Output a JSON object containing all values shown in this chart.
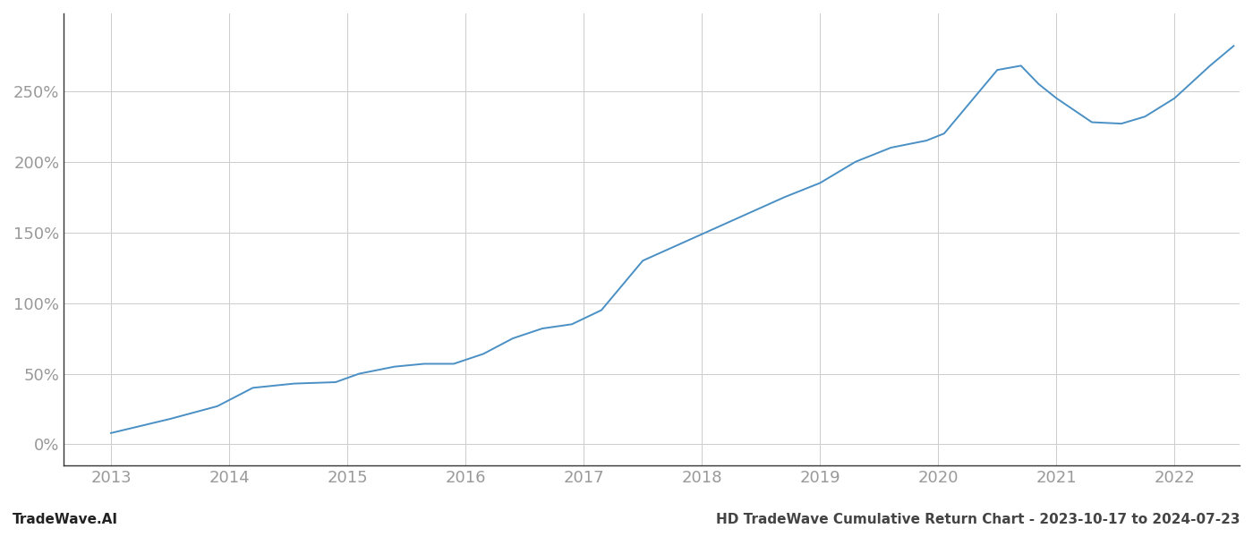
{
  "title": "HD TradeWave Cumulative Return Chart - 2023-10-17 to 2024-07-23",
  "watermark": "TradeWave.AI",
  "x_years": [
    2013,
    2014,
    2015,
    2016,
    2017,
    2018,
    2019,
    2020,
    2021,
    2022
  ],
  "line_color": "#4a90c4",
  "line_width": 1.4,
  "background_color": "#ffffff",
  "grid_color": "#cccccc",
  "yticks": [
    0,
    50,
    100,
    150,
    200,
    250
  ],
  "ylim": [
    -15,
    305
  ],
  "xlim": [
    2012.6,
    2022.55
  ],
  "xy_data": [
    [
      2013.0,
      8
    ],
    [
      2013.5,
      18
    ],
    [
      2013.9,
      27
    ],
    [
      2014.2,
      40
    ],
    [
      2014.55,
      43
    ],
    [
      2014.9,
      44
    ],
    [
      2015.1,
      50
    ],
    [
      2015.4,
      55
    ],
    [
      2015.65,
      57
    ],
    [
      2015.9,
      57
    ],
    [
      2016.15,
      64
    ],
    [
      2016.4,
      75
    ],
    [
      2016.65,
      82
    ],
    [
      2016.9,
      85
    ],
    [
      2017.15,
      95
    ],
    [
      2017.5,
      130
    ],
    [
      2017.9,
      145
    ],
    [
      2018.3,
      160
    ],
    [
      2018.7,
      175
    ],
    [
      2019.0,
      185
    ],
    [
      2019.3,
      200
    ],
    [
      2019.6,
      210
    ],
    [
      2019.9,
      215
    ],
    [
      2020.05,
      220
    ],
    [
      2020.5,
      265
    ],
    [
      2020.7,
      268
    ],
    [
      2020.85,
      255
    ],
    [
      2021.0,
      245
    ],
    [
      2021.3,
      228
    ],
    [
      2021.55,
      227
    ],
    [
      2021.75,
      232
    ],
    [
      2022.0,
      245
    ],
    [
      2022.3,
      268
    ],
    [
      2022.5,
      282
    ]
  ],
  "tick_label_color": "#999999",
  "tick_fontsize": 13,
  "title_fontsize": 11,
  "watermark_fontsize": 11,
  "spine_color": "#333333"
}
